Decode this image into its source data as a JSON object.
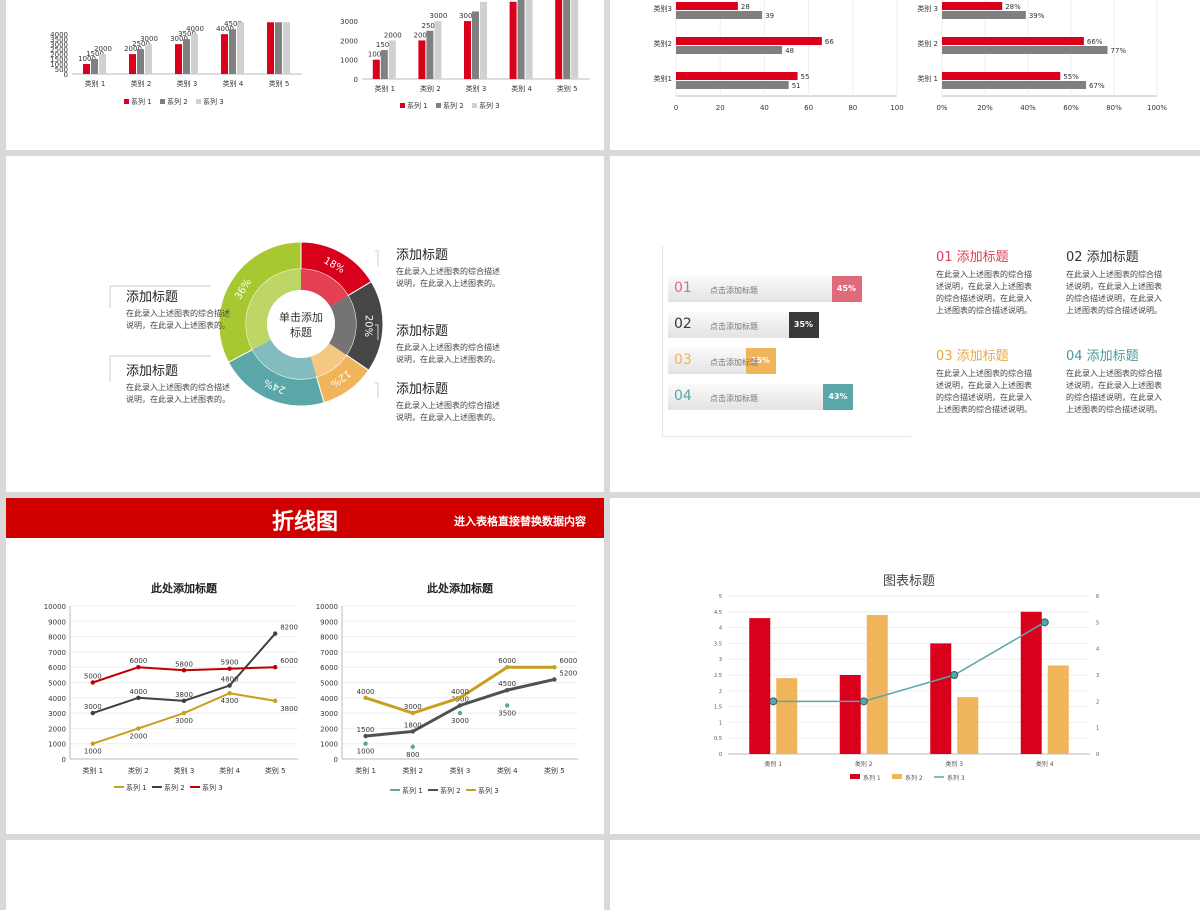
{
  "colors": {
    "red": "#d9001b",
    "gray": "#808080",
    "lightgray": "#d0d0d0",
    "gold": "#c8a020",
    "dark": "#505050",
    "teal": "#5aa6a8",
    "orange": "#f0b45a",
    "green": "#a8c832",
    "pink": "#e06a7a"
  },
  "slide1": {
    "chartA": {
      "type": "bar",
      "categories": [
        "类别 1",
        "类别 2",
        "类别 3",
        "类别 4",
        "类别 5"
      ],
      "yticks": [
        "0",
        "500",
        "1000",
        "1500",
        "2000",
        "2500",
        "3000",
        "3500",
        "4000"
      ],
      "series": [
        {
          "name": "系列 1",
          "values": [
            1000,
            2000,
            3000,
            4000,
            5200
          ]
        },
        {
          "name": "系列 2",
          "values": [
            1500,
            2500,
            3500,
            4500,
            5200
          ]
        },
        {
          "name": "系列 3",
          "values": [
            2000,
            3000,
            4000,
            5200,
            5200
          ]
        }
      ],
      "labels": [
        [
          "1000",
          "1500",
          "2000"
        ],
        [
          "2000",
          "2500",
          "3000"
        ],
        [
          "3000",
          "3500",
          "4000"
        ],
        [
          "4000",
          "4500",
          ""
        ],
        [
          "",
          "",
          ""
        ]
      ]
    },
    "chartB": {
      "type": "bar",
      "categories": [
        "类别 1",
        "类别 2",
        "类别 3",
        "类别 4",
        "类别 5"
      ],
      "yticks": [
        "0",
        "1000",
        "2000",
        "3000"
      ],
      "series": [
        {
          "name": "系列 1",
          "values": [
            1000,
            2000,
            3000,
            4000,
            5200
          ]
        },
        {
          "name": "系列 2",
          "values": [
            1500,
            2500,
            3500,
            4500,
            5200
          ]
        },
        {
          "name": "系列 3",
          "values": [
            2000,
            3000,
            4000,
            5200,
            5200
          ]
        }
      ],
      "labels": [
        [
          "1000",
          "1500",
          "2000"
        ],
        [
          "2000",
          "2500",
          "3000"
        ],
        [
          "3000",
          "",
          ""
        ],
        [
          "",
          "",
          ""
        ],
        [
          "",
          "",
          ""
        ]
      ]
    }
  },
  "slide2": {
    "chartA": {
      "type": "bar",
      "categories": [
        "类别3",
        "类别2",
        "类别1"
      ],
      "xticks": [
        "0",
        "20",
        "40",
        "60",
        "80",
        "100"
      ],
      "series": [
        {
          "name": "系列 1",
          "values": [
            28,
            66,
            55
          ]
        },
        {
          "name": "系列 2",
          "values": [
            39,
            48,
            51
          ]
        }
      ],
      "labels": [
        [
          "28",
          "39"
        ],
        [
          "66",
          "48"
        ],
        [
          "55",
          "51"
        ]
      ]
    },
    "chartB": {
      "type": "bar",
      "categories": [
        "类别 3",
        "类别 2",
        "类别 1"
      ],
      "xticks": [
        "0%",
        "20%",
        "40%",
        "60%",
        "80%",
        "100%"
      ],
      "series": [
        {
          "name": "系列 1",
          "values": [
            28,
            66,
            55
          ]
        },
        {
          "name": "系列 2",
          "values": [
            39,
            77,
            67
          ]
        }
      ],
      "labels": [
        [
          "28%",
          "39%"
        ],
        [
          "66%",
          "77%"
        ],
        [
          "55%",
          "67%"
        ]
      ]
    }
  },
  "slide3": {
    "center": "单击添加标题",
    "segments": [
      {
        "label": "18%",
        "value": 18,
        "color": "#d9001b"
      },
      {
        "label": "20%",
        "value": 20,
        "color": "#464646"
      },
      {
        "label": "12%",
        "value": 12,
        "color": "#f0b45a"
      },
      {
        "label": "24%",
        "value": 24,
        "color": "#5aa6a8"
      },
      {
        "label": "36%",
        "value": 36,
        "color": "#a8c832"
      }
    ],
    "blocks": [
      {
        "title": "添加标题",
        "desc": "在此录入上述图表的综合描述说明，在此录入上述图表的。"
      },
      {
        "title": "添加标题",
        "desc": "在此录入上述图表的综合描述说明，在此录入上述图表的。"
      },
      {
        "title": "添加标题",
        "desc": "在此录入上述图表的综合描述说明，在此录入上述图表的。"
      },
      {
        "title": "添加标题",
        "desc": "在此录入上述图表的综合描述说明，在此录入上述图表的。"
      },
      {
        "title": "添加标题",
        "desc": "在此录入上述图表的综合描述说明，在此录入上述图表的。"
      }
    ]
  },
  "slide4": {
    "bars": [
      {
        "num": "01",
        "text": "点击添加标题",
        "pct": "45%",
        "value": 45,
        "color": "#e06a7a"
      },
      {
        "num": "02",
        "text": "点击添加标题",
        "pct": "35%",
        "value": 35,
        "color": "#3a3a3a"
      },
      {
        "num": "03",
        "text": "点击添加标题",
        "pct": "25%",
        "value": 25,
        "color": "#f0b45a"
      },
      {
        "num": "04",
        "text": "点击添加标题",
        "pct": "43%",
        "value": 43,
        "color": "#5aa6a8"
      }
    ],
    "infos": [
      {
        "title": "01 添加标题",
        "desc": "在此录入上述图表的综合描述说明，在此录入上述图表的综合描述说明，在此录入上述图表的综合描述说明。",
        "color": "#d9405a"
      },
      {
        "title": "02 添加标题",
        "desc": "在此录入上述图表的综合描述说明，在此录入上述图表的综合描述说明，在此录入上述图表的综合描述说明。",
        "color": "#333333"
      },
      {
        "title": "03 添加标题",
        "desc": "在此录入上述图表的综合描述说明，在此录入上述图表的综合描述说明，在此录入上述图表的综合描述说明。",
        "color": "#e8a840"
      },
      {
        "title": "04 添加标题",
        "desc": "在此录入上述图表的综合描述说明，在此录入上述图表的综合描述说明，在此录入上述图表的综合描述说明。",
        "color": "#4a9a9c"
      }
    ]
  },
  "slide5": {
    "banner_title": "折线图",
    "banner_sub": "进入表格直接替换数据内容",
    "chartA": {
      "type": "line",
      "title": "此处添加标题",
      "categories": [
        "类别 1",
        "类别 2",
        "类别 3",
        "类别 4",
        "类别 5"
      ],
      "yticks": [
        "0",
        "1000",
        "2000",
        "3000",
        "4000",
        "5000",
        "6000",
        "7000",
        "8000",
        "9000",
        "10000"
      ],
      "ylim": [
        0,
        10000
      ],
      "series": [
        {
          "name": "系列 1",
          "values": [
            1000,
            2000,
            3000,
            4300,
            3800
          ],
          "color": "#c8a020"
        },
        {
          "name": "系列 2",
          "values": [
            3000,
            4000,
            3800,
            4800,
            8200
          ],
          "color": "#404040"
        },
        {
          "name": "系列 3",
          "values": [
            5000,
            6000,
            5800,
            5900,
            6000
          ],
          "color": "#c00000"
        }
      ]
    },
    "chartB": {
      "type": "line",
      "title": "此处添加标题",
      "categories": [
        "类别 1",
        "类别 2",
        "类别 3",
        "类别 4",
        "类别 5"
      ],
      "yticks": [
        "0",
        "1000",
        "2000",
        "3000",
        "4000",
        "5000",
        "6000",
        "7000",
        "8000",
        "9000",
        "10000"
      ],
      "ylim": [
        0,
        10000
      ],
      "series": [
        {
          "name": "系列 1",
          "values": [
            1000,
            800,
            3000,
            3500,
            null
          ],
          "color": "#5aa6a8",
          "labels": [
            "1000",
            "800",
            "3000",
            "3500",
            ""
          ]
        },
        {
          "name": "系列 2",
          "values": [
            1500,
            1800,
            3500,
            4500,
            5200
          ],
          "color": "#505050",
          "labels": [
            "1500",
            "1800",
            "3500",
            "4500",
            "5200"
          ]
        },
        {
          "name": "系列 3",
          "values": [
            4000,
            3000,
            4000,
            6000,
            6000
          ],
          "color": "#c8a020",
          "labels": [
            "4000",
            "3000",
            "4000",
            "6000",
            "6000"
          ]
        }
      ]
    }
  },
  "slide6": {
    "chart": {
      "type": "bar",
      "title": "图表标题",
      "categories": [
        "类别 1",
        "类别 2",
        "类别 3",
        "类别 4"
      ],
      "yticks": [
        "0",
        "0.5",
        "1",
        "1.5",
        "2",
        "2.5",
        "3",
        "3.5",
        "4",
        "4.5",
        "5"
      ],
      "y2ticks": [
        "0",
        "1",
        "2",
        "3",
        "4",
        "5",
        "6"
      ],
      "ylim": [
        0,
        5
      ],
      "y2lim": [
        0,
        6
      ],
      "series": [
        {
          "name": "系列 1",
          "values": [
            4.3,
            2.5,
            3.5,
            4.5
          ],
          "color": "#d9001b",
          "kind": "bar"
        },
        {
          "name": "系列 2",
          "values": [
            2.4,
            4.4,
            1.8,
            2.8
          ],
          "color": "#f0b45a",
          "kind": "bar"
        },
        {
          "name": "系列 3",
          "values": [
            2,
            2,
            3,
            5
          ],
          "color": "#5aa6a8",
          "kind": "line"
        }
      ]
    }
  }
}
